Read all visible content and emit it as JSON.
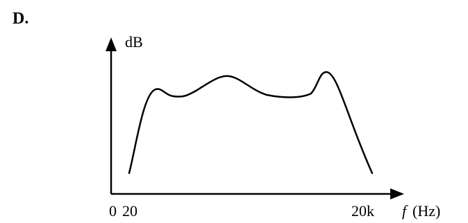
{
  "option_label": "D.",
  "y_axis_label": "dB",
  "x_axis": {
    "origin_label": "0",
    "start_label": "20",
    "end_label": "20k",
    "variable": "f",
    "unit": "(Hz)"
  },
  "colors": {
    "ink": "#000000",
    "background": "#ffffff"
  }
}
